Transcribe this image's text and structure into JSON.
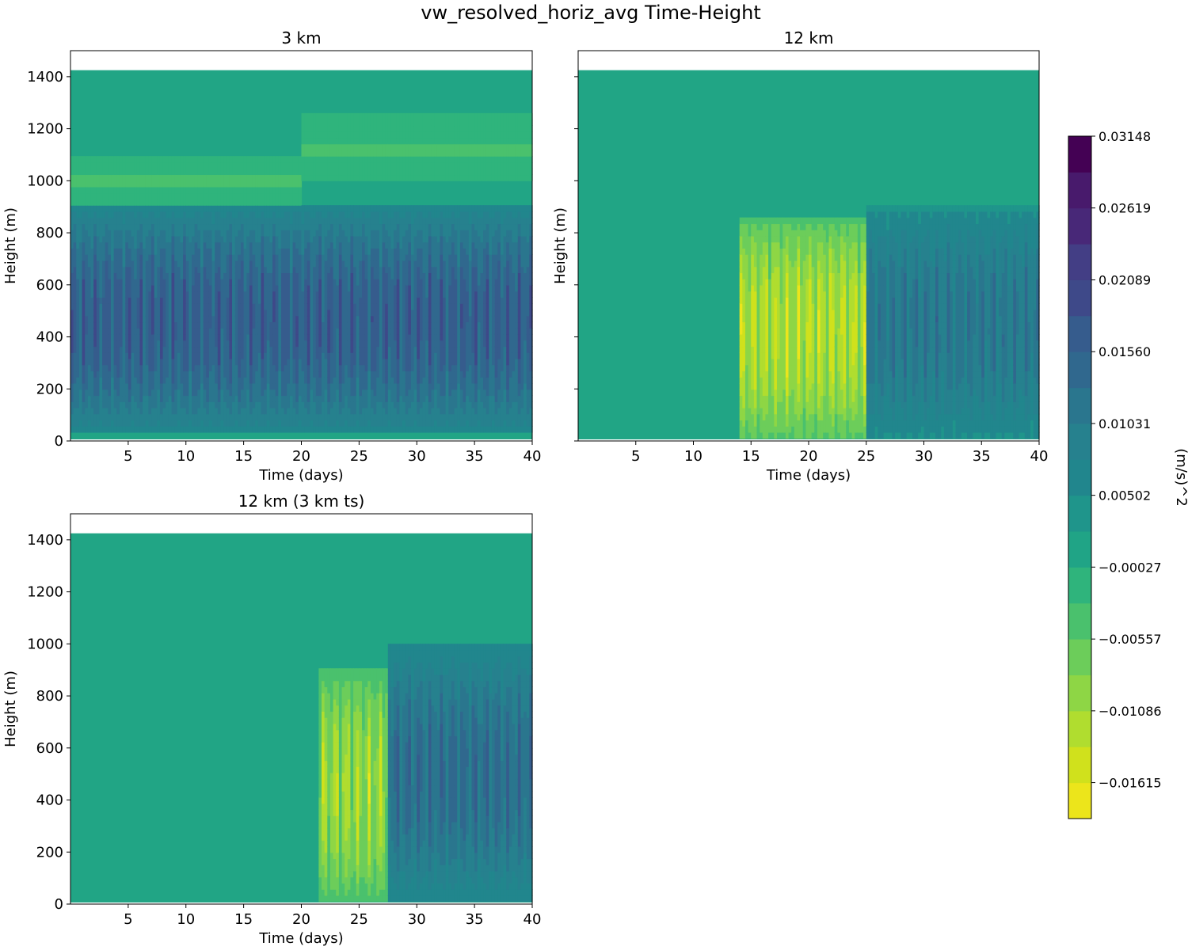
{
  "figure": {
    "title": "vw_resolved_horiz_avg Time-Height"
  },
  "chart_data": [
    {
      "type": "heatmap",
      "title": "3 km",
      "xlabel": "Time (days)",
      "ylabel": "Height (m)",
      "xlim": [
        0,
        40
      ],
      "ylim": [
        0,
        1500
      ],
      "xticks": [
        5,
        10,
        15,
        20,
        25,
        30,
        35,
        40
      ],
      "yticks": [
        0,
        200,
        400,
        600,
        800,
        1000,
        1200,
        1400
      ],
      "data_top_height": 1425,
      "description_bands": [
        {
          "z_range": [
            30,
            900
          ],
          "time_range": [
            0,
            40
          ],
          "value": 0.016,
          "variability": 0.006
        },
        {
          "z_range": [
            900,
            1100
          ],
          "time_range": [
            0,
            20
          ],
          "value": -0.003
        },
        {
          "z_range": [
            1000,
            1250
          ],
          "time_range": [
            20,
            40
          ],
          "value": -0.003
        }
      ]
    },
    {
      "type": "heatmap",
      "title": "12 km",
      "xlabel": "Time (days)",
      "ylabel": "Height (m)",
      "xlim": [
        0,
        40
      ],
      "ylim": [
        0,
        1500
      ],
      "xticks": [
        5,
        10,
        15,
        20,
        25,
        30,
        35,
        40
      ],
      "yticks": [
        0,
        200,
        400,
        600,
        800,
        1000,
        1200,
        1400
      ],
      "data_top_height": 1425,
      "description_bands": [
        {
          "z_range": [
            0,
            850
          ],
          "time_range": [
            14,
            25
          ],
          "value": -0.012,
          "variability": 0.008
        },
        {
          "z_range": [
            0,
            900
          ],
          "time_range": [
            25,
            40
          ],
          "value": 0.011,
          "variability": 0.006
        }
      ]
    },
    {
      "type": "heatmap",
      "title": "12 km (3 km ts)",
      "xlabel": "Time (days)",
      "ylabel": "Height (m)",
      "xlim": [
        0,
        40
      ],
      "ylim": [
        0,
        1500
      ],
      "xticks": [
        5,
        10,
        15,
        20,
        25,
        30,
        35,
        40
      ],
      "yticks": [
        0,
        200,
        400,
        600,
        800,
        1000,
        1200,
        1400
      ],
      "data_top_height": 1425,
      "description_bands": [
        {
          "z_range": [
            0,
            900
          ],
          "time_range": [
            21.5,
            27.5
          ],
          "value": -0.01,
          "variability": 0.008
        },
        {
          "z_range": [
            0,
            1000
          ],
          "time_range": [
            27.5,
            40
          ],
          "value": 0.013,
          "variability": 0.006
        }
      ]
    }
  ],
  "colorbar": {
    "label": "(m/s)^2",
    "levels": [
      -0.0188,
      -0.01615,
      -0.01351,
      -0.01086,
      -0.00822,
      -0.00557,
      -0.00292,
      -0.00027,
      0.00237,
      0.00502,
      0.00766,
      0.01031,
      0.01295,
      0.0156,
      0.01825,
      0.02089,
      0.02354,
      0.02619,
      0.02883,
      0.03148
    ],
    "tick_labels": [
      "0.03148",
      "0.02619",
      "0.02089",
      "0.01560",
      "0.01031",
      "0.00502",
      "−0.00027",
      "−0.00557",
      "−0.01086",
      "−0.01615"
    ],
    "colors": [
      "#ece51b",
      "#d0e11c",
      "#b0dd2f",
      "#8ed645",
      "#6ccd5a",
      "#4ac16d",
      "#2fb47c",
      "#20a486",
      "#1f958b",
      "#21868d",
      "#26818e",
      "#2a768e",
      "#30688e",
      "#365c8d",
      "#3e4989",
      "#433e85",
      "#482878",
      "#481a6c",
      "#440154"
    ],
    "background_color": "#21a585"
  }
}
